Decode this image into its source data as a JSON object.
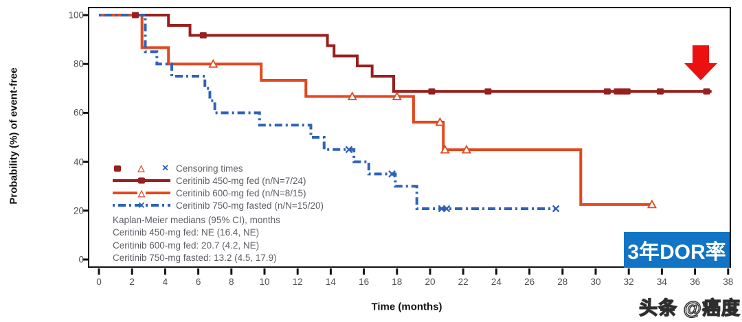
{
  "watermark": {
    "text": "头条 @癌度"
  },
  "annotations": {
    "arrow_color": "#ec1111",
    "dor_box": {
      "text": "3年DOR率",
      "bg_color": "#1174c5",
      "text_color": "#ffffff"
    }
  },
  "chart_data": {
    "type": "line",
    "variant": "kaplan-meier-step",
    "xlabel": "Time (months)",
    "ylabel": "Probability (%) of event-free",
    "xlim": [
      0,
      38
    ],
    "ylim": [
      0,
      100
    ],
    "xticks": [
      0,
      2,
      4,
      6,
      8,
      10,
      12,
      14,
      16,
      18,
      20,
      22,
      24,
      26,
      28,
      30,
      32,
      34,
      36,
      38
    ],
    "yticks": [
      0,
      20,
      40,
      60,
      80,
      100
    ],
    "grid": false,
    "legend_position": "inside-lower-left",
    "censoring_label": "Censoring times",
    "medians_title": "Kaplan-Meier medians (95% CI), months",
    "medians": [
      "Ceritinib 450-mg fed: NE (16.4, NE)",
      "Ceritinib 600-mg fed: 20.7 (4.2, NE)",
      "Ceritinib 750-mg fasted: 13.2 (4.5, 17.9)"
    ],
    "series": [
      {
        "id": "450-fed",
        "name": "Ceritinib 450-mg fed (n/N=7/24)",
        "color": "#97201f",
        "line_style": "solid",
        "marker": "filled-square",
        "steps": [
          [
            0,
            100
          ],
          [
            4.2,
            95.8
          ],
          [
            5.5,
            91.7
          ],
          [
            13.8,
            87.5
          ],
          [
            14.2,
            83.3
          ],
          [
            15.6,
            79.2
          ],
          [
            16.5,
            75.0
          ],
          [
            17.8,
            68.8
          ]
        ],
        "end_time": 37.0,
        "censor_times": [
          [
            2.2,
            100
          ],
          [
            6.3,
            91.7
          ],
          [
            20.1,
            68.8
          ],
          [
            23.5,
            68.8
          ],
          [
            30.7,
            68.8
          ],
          [
            31.3,
            68.8
          ],
          [
            31.6,
            68.8
          ],
          [
            31.9,
            68.8
          ],
          [
            33.9,
            68.8
          ],
          [
            36.7,
            68.8
          ]
        ]
      },
      {
        "id": "600-fed",
        "name": "Ceritinib 600-mg fed (n/N=8/15)",
        "color": "#e2481f",
        "line_style": "solid",
        "marker": "open-triangle",
        "steps": [
          [
            0,
            100
          ],
          [
            2.6,
            86.7
          ],
          [
            4.2,
            80.0
          ],
          [
            9.8,
            73.3
          ],
          [
            12.5,
            66.7
          ],
          [
            19.0,
            56.2
          ],
          [
            20.8,
            44.9
          ],
          [
            29.1,
            22.5
          ]
        ],
        "end_time": 33.4,
        "censor_times": [
          [
            6.9,
            80.0
          ],
          [
            15.3,
            66.7
          ],
          [
            18.0,
            66.7
          ],
          [
            20.6,
            56.2
          ],
          [
            20.9,
            44.9
          ],
          [
            22.2,
            44.9
          ],
          [
            33.4,
            22.5
          ]
        ]
      },
      {
        "id": "750-fasted",
        "name": "Ceritinib 750-mg fasted (n/N=15/20)",
        "color": "#2e62bb",
        "line_style": "dash-dot",
        "marker": "x",
        "steps": [
          [
            0,
            100
          ],
          [
            2.8,
            85
          ],
          [
            3.5,
            80
          ],
          [
            4.4,
            75
          ],
          [
            6.4,
            70
          ],
          [
            6.7,
            65
          ],
          [
            7.0,
            60
          ],
          [
            9.7,
            55
          ],
          [
            12.8,
            50
          ],
          [
            13.6,
            45
          ],
          [
            15.4,
            40
          ],
          [
            16.3,
            35
          ],
          [
            17.9,
            30
          ],
          [
            19.2,
            20.8
          ]
        ],
        "end_time": 27.6,
        "censor_times": [
          [
            15.1,
            45
          ],
          [
            17.7,
            35
          ],
          [
            20.7,
            20.8
          ],
          [
            21.0,
            20.8
          ],
          [
            27.6,
            20.8
          ]
        ]
      }
    ]
  }
}
